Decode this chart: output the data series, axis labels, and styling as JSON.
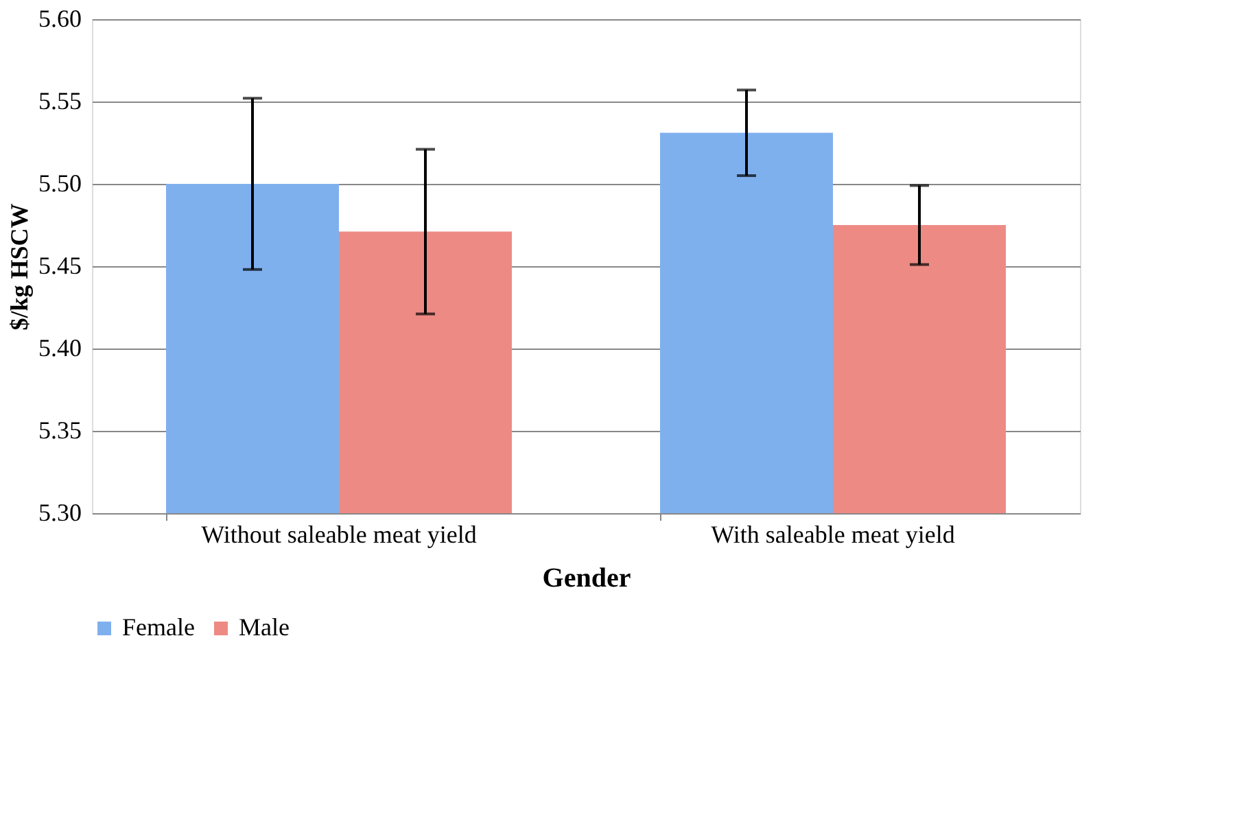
{
  "chart_data": {
    "type": "bar",
    "xlabel": "Gender",
    "ylabel": "$/kg HSCW",
    "categories": [
      "Without saleable meat yield",
      "With saleable meat yield"
    ],
    "series": [
      {
        "name": "Female",
        "color": "#7fb0ee",
        "values": [
          5.5,
          5.531
        ],
        "errors": [
          0.052,
          0.026
        ]
      },
      {
        "name": "Male",
        "color": "#ee8a84",
        "values": [
          5.471,
          5.475
        ],
        "errors": [
          0.05,
          0.024
        ]
      }
    ],
    "ylim": [
      5.3,
      5.6
    ],
    "yticks": [
      {
        "value": 5.3,
        "label": "5.30"
      },
      5.35,
      {
        "value": 5.4,
        "label": "5.40"
      },
      5.45,
      {
        "value": 5.5,
        "label": "5.50"
      },
      5.55,
      {
        "value": 5.6,
        "label": "5.60"
      }
    ],
    "grid": "y",
    "legend": "bottom"
  }
}
